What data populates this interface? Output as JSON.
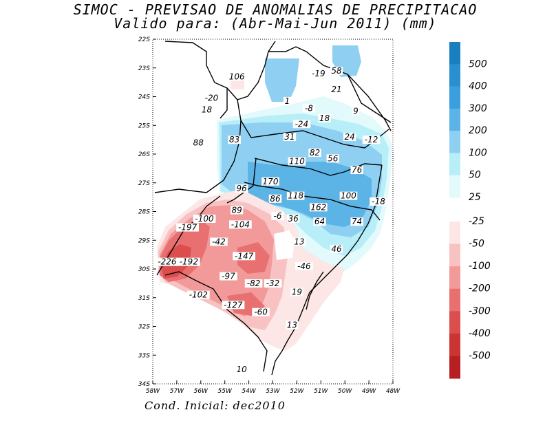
{
  "title": {
    "line1": "SIMOC - PREVISAO DE ANOMALIAS DE PRECIPITACAO",
    "line2": "Valido para: (Abr-Mai-Jun 2011) (mm)"
  },
  "footer": "Cond. Inicial: dec2010",
  "axes": {
    "lat_labels": [
      "22S",
      "23S",
      "24S",
      "25S",
      "26S",
      "27S",
      "28S",
      "29S",
      "30S",
      "31S",
      "32S",
      "33S",
      "34S"
    ],
    "lon_labels": [
      "58W",
      "57W",
      "56W",
      "55W",
      "54W",
      "53W",
      "52W",
      "51W",
      "50W",
      "49W",
      "48W"
    ]
  },
  "legend": {
    "levels": [
      {
        "label": "500",
        "color": "#1a7fbf"
      },
      {
        "label": "400",
        "color": "#2a8fcf"
      },
      {
        "label": "300",
        "color": "#3a9fdc"
      },
      {
        "label": "200",
        "color": "#5cb4e6"
      },
      {
        "label": "100",
        "color": "#8fd0f2"
      },
      {
        "label": "50",
        "color": "#b8eef8"
      },
      {
        "label": "25",
        "color": "#e2fafc"
      },
      {
        "label": "-25",
        "color": "#fde6e6"
      },
      {
        "label": "-50",
        "color": "#f9c2c2"
      },
      {
        "label": "-100",
        "color": "#f29a9a"
      },
      {
        "label": "-200",
        "color": "#e87070"
      },
      {
        "label": "-300",
        "color": "#dc4d4d"
      },
      {
        "label": "-400",
        "color": "#cc3333"
      },
      {
        "label": "-500",
        "color": "#b81f25"
      }
    ]
  },
  "values": [
    {
      "text": "106",
      "lon": 54.5,
      "lat": 23.35
    },
    {
      "text": "-19",
      "lon": 51.1,
      "lat": 23.25
    },
    {
      "text": "58",
      "lon": 50.35,
      "lat": 23.15
    },
    {
      "text": "21",
      "lon": 50.35,
      "lat": 23.8
    },
    {
      "text": "-20",
      "lon": 55.55,
      "lat": 24.1
    },
    {
      "text": "1",
      "lon": 52.4,
      "lat": 24.2
    },
    {
      "text": "18",
      "lon": 55.75,
      "lat": 24.5
    },
    {
      "text": "-8",
      "lon": 51.5,
      "lat": 24.45
    },
    {
      "text": "9",
      "lon": 49.55,
      "lat": 24.55
    },
    {
      "text": "18",
      "lon": 50.85,
      "lat": 24.8
    },
    {
      "text": "-24",
      "lon": 51.8,
      "lat": 25.0
    },
    {
      "text": "31",
      "lon": 52.3,
      "lat": 25.45
    },
    {
      "text": "24",
      "lon": 49.8,
      "lat": 25.45
    },
    {
      "text": "-12",
      "lon": 48.9,
      "lat": 25.55
    },
    {
      "text": "88",
      "lon": 56.1,
      "lat": 25.65
    },
    {
      "text": "83",
      "lon": 54.6,
      "lat": 25.55
    },
    {
      "text": "82",
      "lon": 51.25,
      "lat": 26.0
    },
    {
      "text": "56",
      "lon": 50.5,
      "lat": 26.2
    },
    {
      "text": "110",
      "lon": 52.0,
      "lat": 26.3
    },
    {
      "text": "76",
      "lon": 49.5,
      "lat": 26.6
    },
    {
      "text": "170",
      "lon": 53.1,
      "lat": 27.0
    },
    {
      "text": "96",
      "lon": 54.3,
      "lat": 27.25
    },
    {
      "text": "118",
      "lon": 52.05,
      "lat": 27.5
    },
    {
      "text": "86",
      "lon": 52.9,
      "lat": 27.6
    },
    {
      "text": "100",
      "lon": 49.85,
      "lat": 27.5
    },
    {
      "text": "-18",
      "lon": 48.6,
      "lat": 27.7
    },
    {
      "text": "162",
      "lon": 51.1,
      "lat": 27.9
    },
    {
      "text": "89",
      "lon": 54.5,
      "lat": 28.0
    },
    {
      "text": "-100",
      "lon": 55.85,
      "lat": 28.3
    },
    {
      "text": "-6",
      "lon": 52.8,
      "lat": 28.2
    },
    {
      "text": "36",
      "lon": 52.15,
      "lat": 28.3
    },
    {
      "text": "-104",
      "lon": 54.35,
      "lat": 28.5
    },
    {
      "text": "64",
      "lon": 51.05,
      "lat": 28.4
    },
    {
      "text": "74",
      "lon": 49.5,
      "lat": 28.4
    },
    {
      "text": "-197",
      "lon": 56.55,
      "lat": 28.6
    },
    {
      "text": "-42",
      "lon": 55.25,
      "lat": 29.1
    },
    {
      "text": "13",
      "lon": 51.9,
      "lat": 29.1
    },
    {
      "text": "46",
      "lon": 50.35,
      "lat": 29.35
    },
    {
      "text": "-147",
      "lon": 54.2,
      "lat": 29.6
    },
    {
      "text": "-226",
      "lon": 57.4,
      "lat": 29.8
    },
    {
      "text": "-192",
      "lon": 56.5,
      "lat": 29.8
    },
    {
      "text": "-46",
      "lon": 51.7,
      "lat": 29.95
    },
    {
      "text": "-97",
      "lon": 54.85,
      "lat": 30.3
    },
    {
      "text": "-82",
      "lon": 53.8,
      "lat": 30.55
    },
    {
      "text": "-32",
      "lon": 53.0,
      "lat": 30.55
    },
    {
      "text": "19",
      "lon": 52.0,
      "lat": 30.85
    },
    {
      "text": "-102",
      "lon": 56.1,
      "lat": 30.95
    },
    {
      "text": "-127",
      "lon": 54.65,
      "lat": 31.3
    },
    {
      "text": "-60",
      "lon": 53.5,
      "lat": 31.55
    },
    {
      "text": "13",
      "lon": 52.2,
      "lat": 32.0
    },
    {
      "text": "10",
      "lon": 54.3,
      "lat": 33.55
    }
  ]
}
